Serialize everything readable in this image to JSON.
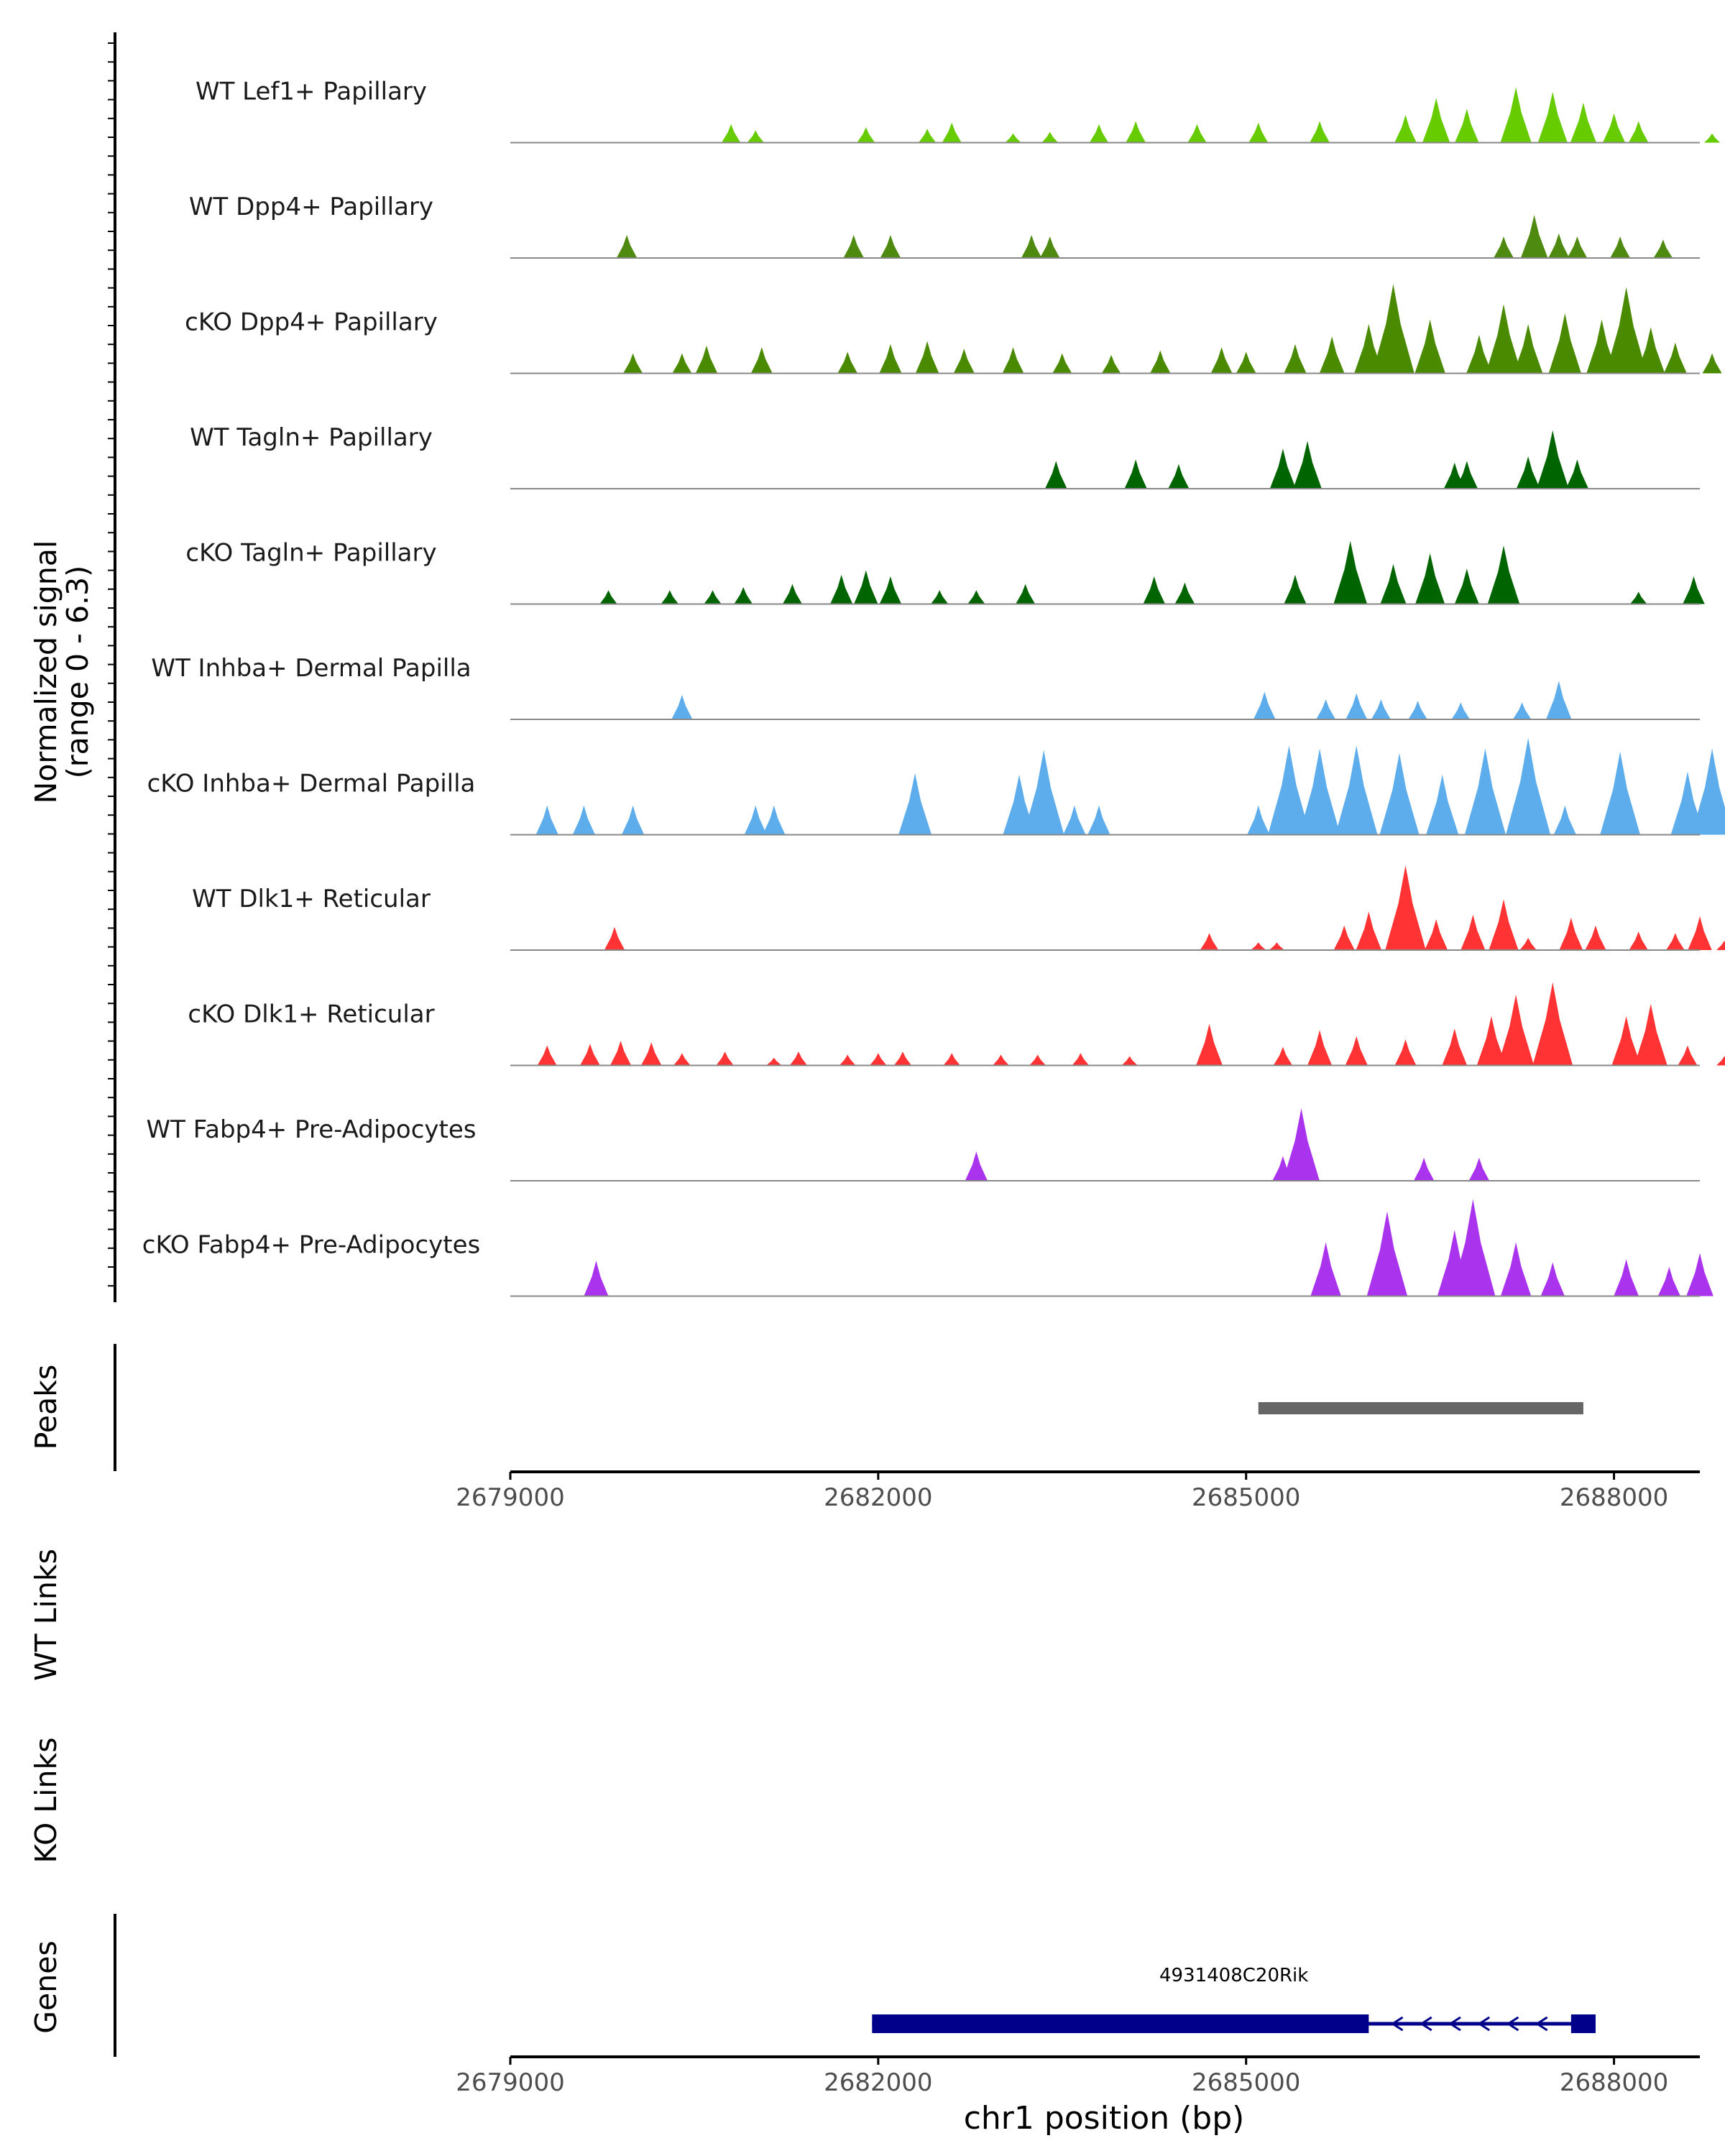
{
  "chart_data": {
    "type": "area",
    "title": "",
    "chromosome": "chr1",
    "xlabel": "chr1 position (bp)",
    "xlim": [
      2679000,
      2688700
    ],
    "x_ticks": [
      2679000,
      2682000,
      2685000,
      2688000
    ],
    "x_tick_labels": [
      "2679000",
      "2682000",
      "2685000",
      "2688000"
    ],
    "coverage_ylabel": "Normalized signal\n(range 0 - 6.3)",
    "coverage_ylabel_lines": [
      "Normalized signal",
      "(range 0 - 6.3)"
    ],
    "ylim": [
      0,
      6.3
    ],
    "tracks": [
      {
        "name": "WT Lef1+ Papillary",
        "color": "#66CC00",
        "peaks": [
          [
            2680800,
            1.2
          ],
          [
            2681000,
            0.8
          ],
          [
            2681900,
            1
          ],
          [
            2682400,
            0.9
          ],
          [
            2682600,
            1.3
          ],
          [
            2683100,
            0.6
          ],
          [
            2683400,
            0.7
          ],
          [
            2683800,
            1.2
          ],
          [
            2684100,
            1.4
          ],
          [
            2684600,
            1.2
          ],
          [
            2685100,
            1.3
          ],
          [
            2685600,
            1.4
          ],
          [
            2686300,
            1.8
          ],
          [
            2686550,
            2.9
          ],
          [
            2686800,
            2.2
          ],
          [
            2687200,
            3.6
          ],
          [
            2687500,
            3.3
          ],
          [
            2687750,
            2.6
          ],
          [
            2688000,
            1.9
          ],
          [
            2688200,
            1.4
          ],
          [
            2688800,
            0.6
          ]
        ]
      },
      {
        "name": "WT Dpp4+ Papillary",
        "color": "#4F8A10",
        "peaks": [
          [
            2679950,
            1.5
          ],
          [
            2681800,
            1.5
          ],
          [
            2682100,
            1.5
          ],
          [
            2683250,
            1.5
          ],
          [
            2683400,
            1.4
          ],
          [
            2687100,
            1.4
          ],
          [
            2687350,
            2.8
          ],
          [
            2687550,
            1.6
          ],
          [
            2687700,
            1.4
          ],
          [
            2688050,
            1.4
          ],
          [
            2688400,
            1.2
          ]
        ]
      },
      {
        "name": "cKO Dpp4+ Papillary",
        "color": "#4A8A00",
        "peaks": [
          [
            2680000,
            1.3
          ],
          [
            2680400,
            1.3
          ],
          [
            2680600,
            1.8
          ],
          [
            2681050,
            1.7
          ],
          [
            2681750,
            1.4
          ],
          [
            2682100,
            1.9
          ],
          [
            2682400,
            2.1
          ],
          [
            2682700,
            1.6
          ],
          [
            2683100,
            1.7
          ],
          [
            2683500,
            1.3
          ],
          [
            2683900,
            1.2
          ],
          [
            2684300,
            1.5
          ],
          [
            2684800,
            1.7
          ],
          [
            2685000,
            1.4
          ],
          [
            2685400,
            1.9
          ],
          [
            2685700,
            2.4
          ],
          [
            2686000,
            3.2
          ],
          [
            2686200,
            5.8
          ],
          [
            2686500,
            3.5
          ],
          [
            2686900,
            2.5
          ],
          [
            2687100,
            4.5
          ],
          [
            2687300,
            3.2
          ],
          [
            2687600,
            3.9
          ],
          [
            2687900,
            3.5
          ],
          [
            2688100,
            5.6
          ],
          [
            2688300,
            3
          ],
          [
            2688500,
            2
          ],
          [
            2688800,
            1.3
          ]
        ]
      },
      {
        "name": "WT Tagln+ Papillary",
        "color": "#006400",
        "peaks": [
          [
            2683450,
            1.8
          ],
          [
            2684100,
            1.9
          ],
          [
            2684450,
            1.6
          ],
          [
            2685300,
            2.6
          ],
          [
            2685500,
            3.1
          ],
          [
            2686700,
            1.7
          ],
          [
            2686800,
            1.8
          ],
          [
            2687300,
            2.1
          ],
          [
            2687500,
            3.8
          ],
          [
            2687700,
            1.9
          ]
        ]
      },
      {
        "name": "cKO Tagln+ Papillary",
        "color": "#006400",
        "peaks": [
          [
            2679800,
            0.9
          ],
          [
            2680300,
            0.9
          ],
          [
            2680650,
            0.9
          ],
          [
            2680900,
            1.1
          ],
          [
            2681300,
            1.3
          ],
          [
            2681700,
            1.9
          ],
          [
            2681900,
            2.2
          ],
          [
            2682100,
            1.8
          ],
          [
            2682500,
            0.9
          ],
          [
            2682800,
            0.9
          ],
          [
            2683200,
            1.3
          ],
          [
            2684250,
            1.8
          ],
          [
            2684500,
            1.4
          ],
          [
            2685400,
            1.9
          ],
          [
            2685850,
            4.1
          ],
          [
            2686200,
            2.6
          ],
          [
            2686500,
            3.3
          ],
          [
            2686800,
            2.3
          ],
          [
            2687100,
            3.8
          ],
          [
            2688200,
            0.8
          ],
          [
            2688650,
            1.8
          ]
        ]
      },
      {
        "name": "WT Inhba+ Dermal Papilla",
        "color": "#5DADEC",
        "peaks": [
          [
            2680400,
            1.6
          ],
          [
            2685150,
            1.8
          ],
          [
            2685650,
            1.3
          ],
          [
            2685900,
            1.7
          ],
          [
            2686100,
            1.3
          ],
          [
            2686400,
            1.2
          ],
          [
            2686750,
            1.1
          ],
          [
            2687250,
            1.1
          ],
          [
            2687550,
            2.5
          ]
        ]
      },
      {
        "name": "cKO Inhba+ Dermal Papilla",
        "color": "#5DADEC",
        "peaks": [
          [
            2679300,
            1.9
          ],
          [
            2679600,
            1.9
          ],
          [
            2680000,
            1.9
          ],
          [
            2681000,
            1.9
          ],
          [
            2681150,
            1.9
          ],
          [
            2682300,
            4
          ],
          [
            2683150,
            3.9
          ],
          [
            2683350,
            5.5
          ],
          [
            2683600,
            1.9
          ],
          [
            2683800,
            1.9
          ],
          [
            2685100,
            1.9
          ],
          [
            2685350,
            5.8
          ],
          [
            2685600,
            5.6
          ],
          [
            2685900,
            5.8
          ],
          [
            2686250,
            5.3
          ],
          [
            2686600,
            3.9
          ],
          [
            2686950,
            5.6
          ],
          [
            2687300,
            6.3
          ],
          [
            2687600,
            1.9
          ],
          [
            2688050,
            5.4
          ],
          [
            2688600,
            4.1
          ],
          [
            2688800,
            5.6
          ],
          [
            2689150,
            1.9
          ]
        ]
      },
      {
        "name": "WT Dlk1+ Reticular",
        "color": "#FF3333",
        "peaks": [
          [
            2679850,
            1.5
          ],
          [
            2684700,
            1.1
          ],
          [
            2685100,
            0.5
          ],
          [
            2685250,
            0.5
          ],
          [
            2685800,
            1.6
          ],
          [
            2686000,
            2.5
          ],
          [
            2686300,
            5.5
          ],
          [
            2686550,
            2
          ],
          [
            2686850,
            2.3
          ],
          [
            2687100,
            3.3
          ],
          [
            2687300,
            0.8
          ],
          [
            2687650,
            2.1
          ],
          [
            2687850,
            1.6
          ],
          [
            2688200,
            1.2
          ],
          [
            2688500,
            1.1
          ],
          [
            2688700,
            2.2
          ],
          [
            2688900,
            0.6
          ]
        ]
      },
      {
        "name": "cKO Dlk1+ Reticular",
        "color": "#FF3333",
        "peaks": [
          [
            2679300,
            1.3
          ],
          [
            2679650,
            1.4
          ],
          [
            2679900,
            1.6
          ],
          [
            2680150,
            1.5
          ],
          [
            2680400,
            0.8
          ],
          [
            2680750,
            0.9
          ],
          [
            2681150,
            0.5
          ],
          [
            2681350,
            0.9
          ],
          [
            2681750,
            0.7
          ],
          [
            2682000,
            0.8
          ],
          [
            2682200,
            0.9
          ],
          [
            2682600,
            0.8
          ],
          [
            2683000,
            0.7
          ],
          [
            2683300,
            0.7
          ],
          [
            2683650,
            0.8
          ],
          [
            2684050,
            0.6
          ],
          [
            2684700,
            2.7
          ],
          [
            2685300,
            1.2
          ],
          [
            2685600,
            2.3
          ],
          [
            2685900,
            1.9
          ],
          [
            2686300,
            1.7
          ],
          [
            2686700,
            2.4
          ],
          [
            2687000,
            3.2
          ],
          [
            2687200,
            4.6
          ],
          [
            2687500,
            5.4
          ],
          [
            2688100,
            3.2
          ],
          [
            2688300,
            4
          ],
          [
            2688600,
            1.3
          ],
          [
            2688900,
            0.6
          ]
        ]
      },
      {
        "name": "WT Fabp4+ Pre-Adipocytes",
        "color": "#AA33EE",
        "peaks": [
          [
            2682800,
            1.9
          ],
          [
            2685300,
            1.6
          ],
          [
            2685450,
            4.7
          ],
          [
            2686450,
            1.5
          ],
          [
            2686900,
            1.5
          ]
        ]
      },
      {
        "name": "cKO Fabp4+ Pre-Adipocytes",
        "color": "#AA33EE",
        "peaks": [
          [
            2679700,
            2.3
          ],
          [
            2685650,
            3.5
          ],
          [
            2686150,
            5.5
          ],
          [
            2686700,
            4.3
          ],
          [
            2686850,
            6.3
          ],
          [
            2687200,
            3.5
          ],
          [
            2687500,
            2.2
          ],
          [
            2688100,
            2.4
          ],
          [
            2688450,
            1.9
          ],
          [
            2688700,
            2.8
          ]
        ]
      }
    ],
    "peak_regions": [
      [
        2685100,
        2687750
      ]
    ],
    "peaks_label": "Peaks",
    "wt_links_label": "WT Links",
    "ko_links_label": "KO Links",
    "genes_label": "Genes",
    "genes": [
      {
        "name": "4931408C20Rik",
        "start": 2681950,
        "end": 2687850,
        "strand": "-",
        "exons": [
          [
            2681950,
            2686000
          ],
          [
            2687650,
            2687850
          ]
        ]
      }
    ],
    "colors": {
      "gene": "#00008B",
      "peak_region": "#666666",
      "baseline": "#888888",
      "axis": "#000000",
      "tick_label": "#4D4D4D"
    }
  }
}
